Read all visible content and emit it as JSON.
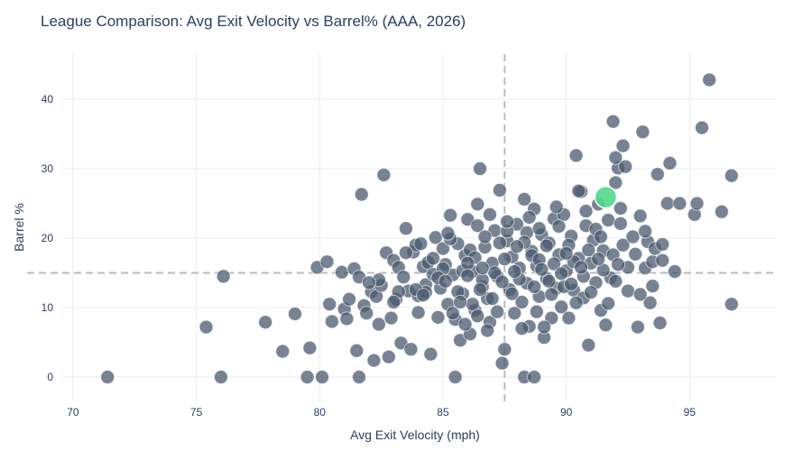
{
  "chart_data": {
    "type": "scatter",
    "title": "League Comparison: Avg Exit Velocity vs Barrel% (AAA, 2026)",
    "xlabel": "Avg Exit Velocity (mph)",
    "ylabel": "Barrel %",
    "xlim": [
      69.6,
      98.5
    ],
    "ylim": [
      -3.5,
      46.5
    ],
    "xticks": [
      70,
      75,
      80,
      85,
      90,
      95
    ],
    "yticks": [
      0,
      10,
      20,
      30,
      40
    ],
    "grid": true,
    "reference_lines": {
      "x": 87.5,
      "y": 15
    },
    "colors": {
      "points": "#4a5a6e",
      "highlight": "#50d98a",
      "reference": "#bbbbbb",
      "grid": "#ebebeb"
    },
    "highlight": {
      "x": 91.6,
      "y": 25.9
    },
    "points": [
      [
        71.4,
        0
      ],
      [
        76.0,
        0
      ],
      [
        79.5,
        0
      ],
      [
        80.1,
        0
      ],
      [
        81.6,
        0
      ],
      [
        85.5,
        0
      ],
      [
        88.3,
        0
      ],
      [
        88.7,
        0
      ],
      [
        75.4,
        7.2
      ],
      [
        76.1,
        14.5
      ],
      [
        77.8,
        7.9
      ],
      [
        78.5,
        3.7
      ],
      [
        79.0,
        9.1
      ],
      [
        79.6,
        4.2
      ],
      [
        79.9,
        15.8
      ],
      [
        80.3,
        16.6
      ],
      [
        80.4,
        10.5
      ],
      [
        80.5,
        8.0
      ],
      [
        80.9,
        15.1
      ],
      [
        81.0,
        9.8
      ],
      [
        81.2,
        11.2
      ],
      [
        81.1,
        8.4
      ],
      [
        81.4,
        15.6
      ],
      [
        81.5,
        3.8
      ],
      [
        81.7,
        26.3
      ],
      [
        81.6,
        14.4
      ],
      [
        81.8,
        10.3
      ],
      [
        81.9,
        9.2
      ],
      [
        82.1,
        12.3
      ],
      [
        82.2,
        2.4
      ],
      [
        82.3,
        11.6
      ],
      [
        82.4,
        7.6
      ],
      [
        82.5,
        13.2
      ],
      [
        82.6,
        29.1
      ],
      [
        82.7,
        17.9
      ],
      [
        82.8,
        2.9
      ],
      [
        82.9,
        8.5
      ],
      [
        83.0,
        16.8
      ],
      [
        83.1,
        11.2
      ],
      [
        83.2,
        15.8
      ],
      [
        83.3,
        4.9
      ],
      [
        83.4,
        14.4
      ],
      [
        83.5,
        21.4
      ],
      [
        83.6,
        12.4
      ],
      [
        83.7,
        4.0
      ],
      [
        83.8,
        18.0
      ],
      [
        83.9,
        19.0
      ],
      [
        84.0,
        11.7
      ],
      [
        84.2,
        15.9
      ],
      [
        84.3,
        13.3
      ],
      [
        84.4,
        16.5
      ],
      [
        84.5,
        3.3
      ],
      [
        84.6,
        14.8
      ],
      [
        84.7,
        20.1
      ],
      [
        84.8,
        8.6
      ],
      [
        84.9,
        12.8
      ],
      [
        85.0,
        18.5
      ],
      [
        85.1,
        16.2
      ],
      [
        85.2,
        10.5
      ],
      [
        85.3,
        23.3
      ],
      [
        85.4,
        14.7
      ],
      [
        85.5,
        8.3
      ],
      [
        85.6,
        19.2
      ],
      [
        85.7,
        5.3
      ],
      [
        85.8,
        12.0
      ],
      [
        85.9,
        17.5
      ],
      [
        86.0,
        22.7
      ],
      [
        86.1,
        6.2
      ],
      [
        86.2,
        15.2
      ],
      [
        86.3,
        9.6
      ],
      [
        86.4,
        24.9
      ],
      [
        86.5,
        30.0
      ],
      [
        86.6,
        13.0
      ],
      [
        86.7,
        18.7
      ],
      [
        86.8,
        11.3
      ],
      [
        86.9,
        7.9
      ],
      [
        87.0,
        16.4
      ],
      [
        87.1,
        21.1
      ],
      [
        87.2,
        14.5
      ],
      [
        87.3,
        26.9
      ],
      [
        87.4,
        2.0
      ],
      [
        87.5,
        4.0
      ],
      [
        87.6,
        19.6
      ],
      [
        87.7,
        12.6
      ],
      [
        87.8,
        17.3
      ],
      [
        87.9,
        9.2
      ],
      [
        88.0,
        22.0
      ],
      [
        88.1,
        15.7
      ],
      [
        88.2,
        10.8
      ],
      [
        88.3,
        25.6
      ],
      [
        88.4,
        13.5
      ],
      [
        88.5,
        7.3
      ],
      [
        88.6,
        18.1
      ],
      [
        88.7,
        24.2
      ],
      [
        88.8,
        16.0
      ],
      [
        88.9,
        11.6
      ],
      [
        89.0,
        20.5
      ],
      [
        89.1,
        5.7
      ],
      [
        89.2,
        14.2
      ],
      [
        89.3,
        19.3
      ],
      [
        89.4,
        8.5
      ],
      [
        89.5,
        22.8
      ],
      [
        89.6,
        12.8
      ],
      [
        89.7,
        17.6
      ],
      [
        89.8,
        10.1
      ],
      [
        89.9,
        23.4
      ],
      [
        90.0,
        15.3
      ],
      [
        90.1,
        8.5
      ],
      [
        90.2,
        20.3
      ],
      [
        90.3,
        12.5
      ],
      [
        90.4,
        31.9
      ],
      [
        90.5,
        17.1
      ],
      [
        90.6,
        26.7
      ],
      [
        90.7,
        11.4
      ],
      [
        90.8,
        21.8
      ],
      [
        90.9,
        4.6
      ],
      [
        91.0,
        16.4
      ],
      [
        91.1,
        19.7
      ],
      [
        91.2,
        13.6
      ],
      [
        91.3,
        24.9
      ],
      [
        91.4,
        9.6
      ],
      [
        91.5,
        18.2
      ],
      [
        91.6,
        7.5
      ],
      [
        91.7,
        22.6
      ],
      [
        91.8,
        14.3
      ],
      [
        91.9,
        36.8
      ],
      [
        92.0,
        28.0
      ],
      [
        92.1,
        30.1
      ],
      [
        92.2,
        24.3
      ],
      [
        92.3,
        19.0
      ],
      [
        92.4,
        30.3
      ],
      [
        92.5,
        15.8
      ],
      [
        92.7,
        20.2
      ],
      [
        92.9,
        7.2
      ],
      [
        93.0,
        23.2
      ],
      [
        93.1,
        35.3
      ],
      [
        93.2,
        15.7
      ],
      [
        93.3,
        19.5
      ],
      [
        93.4,
        10.7
      ],
      [
        93.5,
        16.6
      ],
      [
        93.6,
        18.5
      ],
      [
        93.7,
        29.2
      ],
      [
        93.8,
        7.8
      ],
      [
        93.9,
        19.1
      ],
      [
        94.1,
        25.0
      ],
      [
        94.2,
        30.8
      ],
      [
        94.4,
        15.2
      ],
      [
        94.6,
        25.0
      ],
      [
        95.2,
        23.4
      ],
      [
        95.3,
        25.0
      ],
      [
        95.5,
        35.9
      ],
      [
        95.8,
        42.8
      ],
      [
        96.3,
        23.8
      ],
      [
        96.7,
        29.0
      ],
      [
        96.7,
        10.5
      ],
      [
        92.3,
        33.3
      ],
      [
        92.0,
        31.6
      ],
      [
        90.5,
        26.8
      ],
      [
        88.6,
        17.5
      ],
      [
        89.2,
        18.9
      ],
      [
        86.4,
        21.8
      ],
      [
        86.1,
        18.3
      ],
      [
        87.1,
        15.0
      ],
      [
        85.6,
        12.3
      ],
      [
        89.3,
        13.8
      ],
      [
        90.7,
        14.5
      ],
      [
        91.2,
        21.3
      ],
      [
        88.4,
        20.8
      ],
      [
        87.8,
        12.0
      ],
      [
        86.6,
        14.0
      ],
      [
        85.0,
        15.6
      ],
      [
        84.3,
        12.2
      ],
      [
        83.5,
        17.9
      ],
      [
        90.1,
        19.0
      ],
      [
        91.9,
        17.6
      ],
      [
        89.7,
        21.7
      ],
      [
        88.9,
        16.9
      ],
      [
        87.3,
        19.3
      ],
      [
        86.3,
        17.2
      ],
      [
        85.3,
        19.9
      ],
      [
        84.6,
        17.1
      ],
      [
        83.9,
        12.6
      ],
      [
        82.4,
        14.0
      ],
      [
        88.5,
        23.0
      ],
      [
        89.5,
        16.3
      ],
      [
        90.9,
        18.3
      ],
      [
        92.2,
        22.1
      ],
      [
        86.9,
        23.4
      ],
      [
        87.6,
        21.0
      ],
      [
        85.8,
        15.3
      ],
      [
        84.8,
        14.3
      ],
      [
        88.1,
        14.1
      ],
      [
        89.9,
        13.0
      ],
      [
        91.5,
        15.4
      ],
      [
        92.8,
        17.7
      ],
      [
        90.3,
        16.6
      ],
      [
        87.0,
        11.3
      ],
      [
        86.2,
        10.5
      ],
      [
        85.4,
        9.2
      ],
      [
        88.8,
        9.4
      ],
      [
        89.1,
        7.2
      ],
      [
        90.4,
        10.7
      ],
      [
        88.2,
        7.0
      ],
      [
        86.8,
        6.7
      ],
      [
        85.9,
        7.6
      ],
      [
        84.2,
        11.8
      ],
      [
        83.2,
        12.3
      ],
      [
        91.0,
        12.2
      ],
      [
        92.0,
        13.8
      ],
      [
        93.5,
        13.1
      ],
      [
        89.6,
        24.5
      ],
      [
        90.8,
        23.9
      ],
      [
        91.4,
        20.2
      ],
      [
        87.5,
        17.0
      ],
      [
        86.0,
        16.4
      ],
      [
        85.1,
        13.8
      ],
      [
        88.7,
        13.0
      ],
      [
        89.4,
        11.9
      ],
      [
        86.5,
        12.6
      ],
      [
        87.9,
        15.2
      ],
      [
        90.0,
        17.8
      ],
      [
        88.3,
        19.4
      ],
      [
        85.2,
        20.7
      ],
      [
        84.1,
        19.2
      ],
      [
        86.7,
        20.2
      ],
      [
        87.2,
        9.4
      ],
      [
        89.8,
        14.9
      ],
      [
        91.7,
        10.6
      ],
      [
        92.5,
        12.4
      ],
      [
        93.2,
        21.0
      ],
      [
        93.9,
        16.8
      ],
      [
        90.6,
        15.8
      ],
      [
        88.0,
        18.8
      ],
      [
        86.4,
        8.8
      ],
      [
        85.7,
        10.8
      ],
      [
        84.0,
        9.3
      ],
      [
        83.0,
        10.8
      ],
      [
        82.0,
        13.6
      ],
      [
        90.2,
        13.4
      ],
      [
        91.3,
        17.0
      ],
      [
        89.0,
        15.5
      ],
      [
        87.4,
        13.7
      ],
      [
        86.6,
        15.7
      ],
      [
        88.9,
        21.4
      ],
      [
        92.1,
        16.2
      ],
      [
        93.0,
        11.9
      ],
      [
        86.0,
        14.6
      ],
      [
        87.6,
        22.4
      ]
    ]
  }
}
